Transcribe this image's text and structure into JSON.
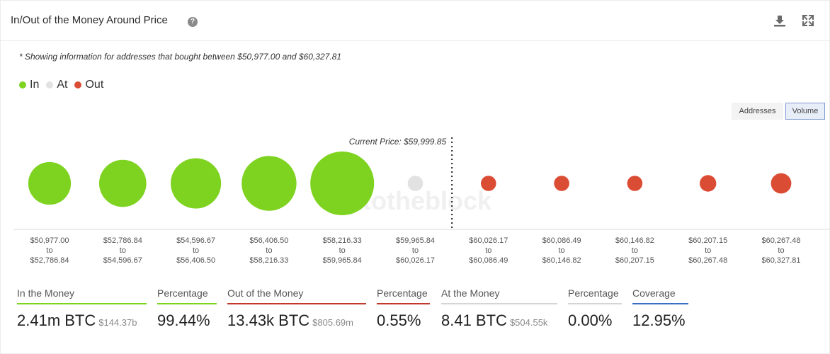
{
  "header": {
    "title": "In/Out of the Money Around Price",
    "help_icon": "question-circle-icon",
    "help_glyph": "?",
    "download_icon": "download-icon",
    "expand_icon": "expand-icon"
  },
  "note": "* Showing information for addresses that bought between $50,977.00 and $60,327.81",
  "legend": [
    {
      "label": "In",
      "color": "#7ed321"
    },
    {
      "label": "At",
      "color": "#e2e2e2"
    },
    {
      "label": "Out",
      "color": "#db4c34"
    }
  ],
  "toggle": {
    "addresses": "Addresses",
    "volume": "Volume",
    "active": "Volume"
  },
  "watermark": "intotheblock",
  "chart_data": {
    "type": "bubble",
    "current_price_label": "Current Price: $59,999.85",
    "current_price_between_index": [
      5,
      6
    ],
    "unit": "BTC",
    "categories": [
      {
        "from": "$50,977.00",
        "to": "$52,786.84"
      },
      {
        "from": "$52,786.84",
        "to": "$54,596.67"
      },
      {
        "from": "$54,596.67",
        "to": "$56,406.50"
      },
      {
        "from": "$56,406.50",
        "to": "$58,216.33"
      },
      {
        "from": "$58,216.33",
        "to": "$59,965.84"
      },
      {
        "from": "$59,965.84",
        "to": "$60,026.17"
      },
      {
        "from": "$60,026.17",
        "to": "$60,086.49"
      },
      {
        "from": "$60,086.49",
        "to": "$60,146.82"
      },
      {
        "from": "$60,146.82",
        "to": "$60,207.15"
      },
      {
        "from": "$60,207.15",
        "to": "$60,267.48"
      },
      {
        "from": "$60,267.48",
        "to": "$60,327.81"
      }
    ],
    "to_word": "to",
    "status": [
      "In",
      "In",
      "In",
      "In",
      "In",
      "At",
      "Out",
      "Out",
      "Out",
      "Out",
      "Out"
    ],
    "relative_size": [
      0.67,
      0.74,
      0.79,
      0.86,
      1.0,
      0.24,
      0.24,
      0.24,
      0.24,
      0.26,
      0.32
    ]
  },
  "stats": {
    "in_money": {
      "label": "In the Money",
      "value": "2.41m BTC",
      "sub": "$144.37b",
      "color": "#7ed321"
    },
    "in_pct": {
      "label": "Percentage",
      "value": "99.44%",
      "color": "#7ed321"
    },
    "out_money": {
      "label": "Out of the Money",
      "value": "13.43k BTC",
      "sub": "$805.69m",
      "color": "#c0392b"
    },
    "out_pct": {
      "label": "Percentage",
      "value": "0.55%",
      "color": "#c0392b"
    },
    "at_money": {
      "label": "At the Money",
      "value": "8.41 BTC",
      "sub": "$504.55k",
      "color": "#d5d5d5"
    },
    "at_pct": {
      "label": "Percentage",
      "value": "0.00%",
      "color": "#d5d5d5"
    },
    "coverage": {
      "label": "Coverage",
      "value": "12.95%",
      "color": "#3b6fc7"
    }
  }
}
